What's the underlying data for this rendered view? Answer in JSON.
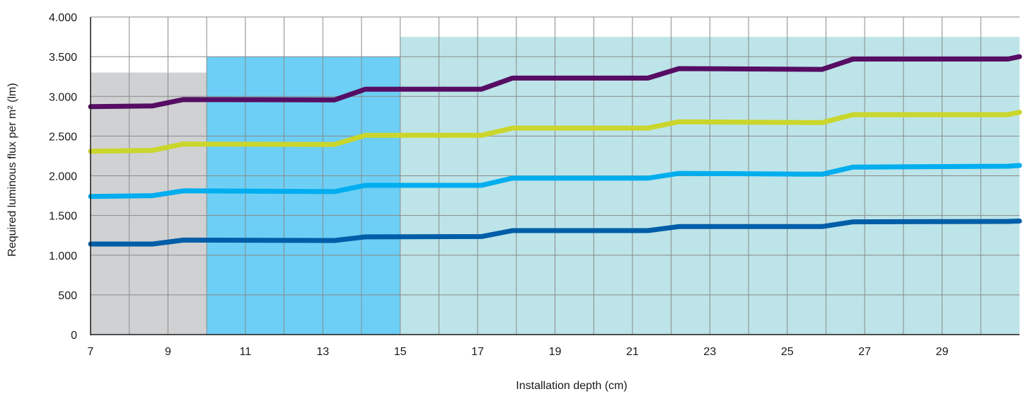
{
  "chart_data": {
    "type": "line",
    "xlabel": "Installation depth (cm)",
    "ylabel": "Required luminous flux per m² (lm)",
    "xlim": [
      7,
      31
    ],
    "ylim": [
      0,
      4000
    ],
    "x_ticks": [
      7,
      9,
      11,
      13,
      15,
      17,
      19,
      21,
      23,
      25,
      27,
      29
    ],
    "x_tick_labels": [
      "7",
      "9",
      "11",
      "13",
      "15",
      "17",
      "19",
      "21",
      "23",
      "25",
      "27",
      "29"
    ],
    "y_ticks": [
      0,
      500,
      1000,
      1500,
      2000,
      2500,
      3000,
      3500,
      4000
    ],
    "y_tick_labels": [
      "0",
      "500",
      "1.000",
      "1.500",
      "2.000",
      "2.500",
      "3.000",
      "3.500",
      "4.000"
    ],
    "grid": true,
    "background_regions": [
      {
        "x_start": 7,
        "x_end": 12,
        "y_max": 3300,
        "color": "#d0d1d3"
      },
      {
        "x_start": 10,
        "x_end": 18,
        "y_max": 3500,
        "color": "#6dcff5"
      },
      {
        "x_start": 15,
        "x_end": 31,
        "y_max": 3750,
        "color": "#bde4e8"
      }
    ],
    "series": [
      {
        "color": "#560d63",
        "x": [
          7,
          8.6,
          9.4,
          13.3,
          14.1,
          17.1,
          17.9,
          21.4,
          22.2,
          25.9,
          26.7,
          30.7,
          31
        ],
        "values": [
          2870,
          2880,
          2960,
          2955,
          3090,
          3090,
          3230,
          3230,
          3350,
          3340,
          3470,
          3470,
          3500
        ]
      },
      {
        "color": "#cad62b",
        "x": [
          7,
          8.6,
          9.4,
          13.3,
          14.1,
          17.1,
          17.9,
          21.4,
          22.2,
          25.9,
          26.7,
          30.7,
          31
        ],
        "values": [
          2310,
          2320,
          2400,
          2395,
          2510,
          2510,
          2600,
          2600,
          2680,
          2670,
          2770,
          2770,
          2800
        ]
      },
      {
        "color": "#00aeef",
        "x": [
          7,
          8.6,
          9.4,
          13.3,
          14.1,
          17.1,
          17.9,
          21.4,
          22.2,
          25.9,
          26.7,
          30.7,
          31
        ],
        "values": [
          1740,
          1750,
          1810,
          1800,
          1880,
          1880,
          1970,
          1970,
          2030,
          2020,
          2110,
          2120,
          2130
        ]
      },
      {
        "color": "#005ea8",
        "x": [
          7,
          8.6,
          9.4,
          13.3,
          14.1,
          17.1,
          17.9,
          21.4,
          22.2,
          25.9,
          26.7,
          30.7,
          31
        ],
        "values": [
          1140,
          1140,
          1190,
          1185,
          1230,
          1235,
          1310,
          1310,
          1360,
          1360,
          1420,
          1425,
          1430
        ]
      }
    ]
  }
}
